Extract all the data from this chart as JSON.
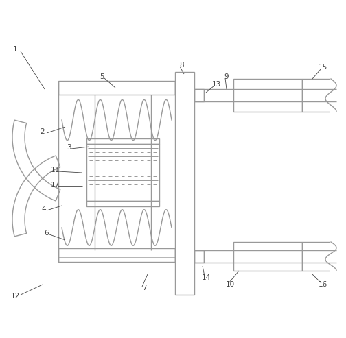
{
  "bg_color": "#ffffff",
  "line_color": "#999999",
  "label_color": "#444444",
  "figsize": [
    5.04,
    4.93
  ],
  "dpi": 100,
  "lw": 1.0
}
